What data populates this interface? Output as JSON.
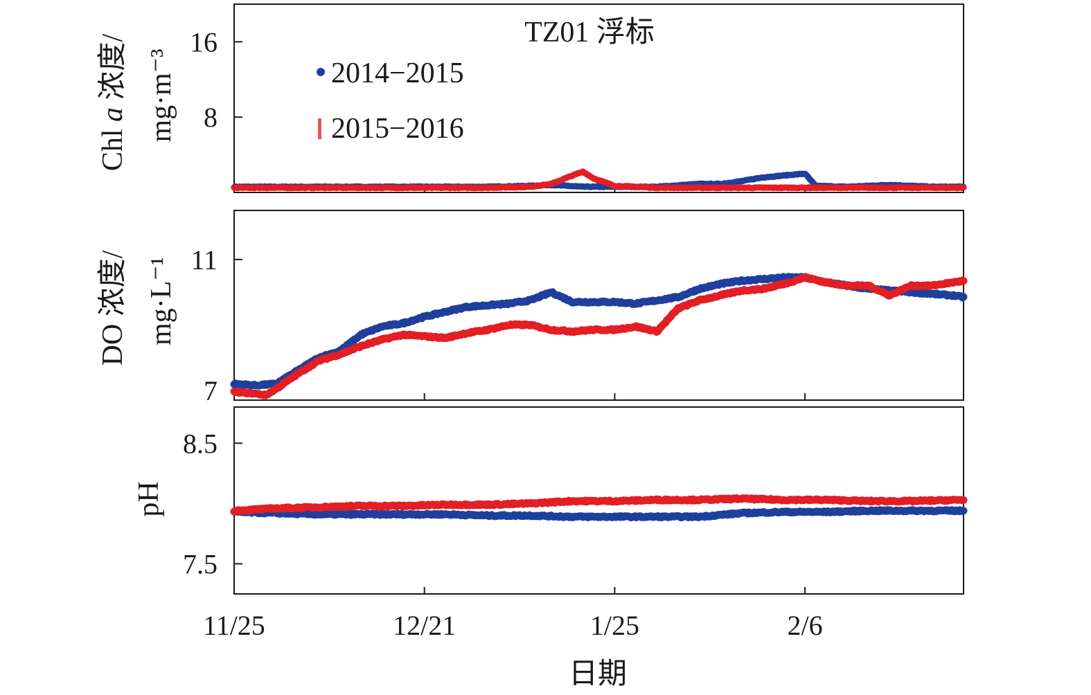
{
  "figure": {
    "title": "TZ01 浮标",
    "xlabel": "日期",
    "x_ticks": [
      "11/25",
      "12/21",
      "1/25",
      "2/6"
    ],
    "colors": {
      "2014-2015": "#1f3f9c",
      "2015-2016": "#e31e24"
    }
  },
  "chart_data": [
    {
      "type": "line",
      "panel": "chl",
      "title": "TZ01 浮标",
      "ylabel": "Chl a 浓度/",
      "ylabel_italic_part": "a",
      "yunit": "mg·m⁻³",
      "ylim": [
        0,
        20
      ],
      "yticks": [
        8,
        16
      ],
      "ytick_labels": [
        "8",
        "16"
      ],
      "xlabel": "日期",
      "x_ticks": [
        "11/25",
        "12/21",
        "1/25",
        "2/6"
      ],
      "legend": {
        "placement": "top-left"
      },
      "series": [
        {
          "name": "2014−2015",
          "color": "#1f3f9c",
          "marker": "dot",
          "x": [
            0,
            4,
            8,
            12,
            16,
            20,
            24,
            28,
            30,
            33,
            36,
            40,
            44,
            46,
            48,
            49,
            50,
            52,
            54,
            55,
            58,
            62,
            66,
            69
          ],
          "y": [
            0.6,
            0.6,
            0.6,
            0.6,
            0.6,
            0.6,
            0.6,
            0.7,
            0.8,
            0.6,
            0.6,
            0.6,
            0.9,
            0.9,
            1.2,
            1.4,
            1.6,
            1.8,
            2.0,
            0.7,
            0.6,
            0.8,
            0.6,
            0.6
          ]
        },
        {
          "name": "2015−2016",
          "color": "#e31e24",
          "marker": "vbar",
          "x": [
            0,
            4,
            8,
            12,
            16,
            20,
            24,
            28,
            30,
            32,
            33,
            34,
            36,
            38,
            40,
            44,
            48,
            52,
            56,
            60,
            64,
            69
          ],
          "y": [
            0.5,
            0.5,
            0.5,
            0.5,
            0.5,
            0.5,
            0.5,
            0.6,
            0.9,
            1.8,
            2.2,
            1.5,
            0.7,
            0.6,
            0.5,
            0.5,
            0.5,
            0.5,
            0.5,
            0.5,
            0.5,
            0.5
          ]
        }
      ]
    },
    {
      "type": "line",
      "panel": "do",
      "ylabel": "DO 浓度/",
      "yunit": "mg·L⁻¹",
      "ylim": [
        6.7,
        12.5
      ],
      "yticks": [
        7,
        11
      ],
      "ytick_labels": [
        "7",
        "11"
      ],
      "series": [
        {
          "name": "2014−2015",
          "color": "#1f3f9c",
          "x": [
            0,
            2,
            4,
            6,
            8,
            10,
            12,
            14,
            16,
            18,
            20,
            22,
            24,
            26,
            28,
            30,
            32,
            34,
            36,
            38,
            40,
            42,
            44,
            46,
            48,
            50,
            52,
            54,
            56,
            58,
            60,
            62,
            64,
            66,
            68,
            69
          ],
          "y": [
            7.2,
            7.15,
            7.2,
            7.6,
            8.0,
            8.2,
            8.7,
            8.95,
            9.05,
            9.25,
            9.4,
            9.55,
            9.6,
            9.65,
            9.75,
            10.0,
            9.7,
            9.7,
            9.7,
            9.65,
            9.75,
            9.85,
            10.1,
            10.25,
            10.35,
            10.4,
            10.45,
            10.45,
            10.3,
            10.2,
            10.1,
            10.05,
            10.0,
            9.95,
            9.9,
            9.85
          ]
        },
        {
          "name": "2015−2016",
          "color": "#e31e24",
          "x": [
            0,
            2,
            3,
            4,
            6,
            8,
            10,
            12,
            14,
            16,
            18,
            20,
            22,
            24,
            26,
            28,
            30,
            32,
            34,
            36,
            38,
            40,
            42,
            44,
            46,
            48,
            50,
            52,
            54,
            56,
            58,
            60,
            62,
            64,
            66,
            68,
            69
          ],
          "y": [
            6.95,
            6.9,
            6.85,
            7.05,
            7.5,
            7.9,
            8.1,
            8.35,
            8.55,
            8.7,
            8.65,
            8.6,
            8.75,
            8.85,
            9.0,
            9.0,
            8.85,
            8.8,
            8.85,
            8.85,
            8.95,
            8.8,
            9.5,
            9.75,
            9.9,
            10.05,
            10.1,
            10.25,
            10.45,
            10.3,
            10.2,
            10.2,
            9.9,
            10.2,
            10.2,
            10.3,
            10.35
          ]
        }
      ]
    },
    {
      "type": "line",
      "panel": "ph",
      "ylabel": "pH",
      "ylim": [
        7.25,
        8.8
      ],
      "yticks": [
        7.5,
        8.5
      ],
      "ytick_labels": [
        "7.5",
        "8.5"
      ],
      "series": [
        {
          "name": "2014−2015",
          "color": "#1f3f9c",
          "x": [
            0,
            4,
            8,
            12,
            16,
            20,
            24,
            28,
            32,
            36,
            40,
            44,
            48,
            52,
            56,
            60,
            64,
            69
          ],
          "y": [
            7.93,
            7.92,
            7.91,
            7.91,
            7.91,
            7.91,
            7.9,
            7.9,
            7.89,
            7.89,
            7.89,
            7.89,
            7.92,
            7.93,
            7.93,
            7.94,
            7.94,
            7.94
          ]
        },
        {
          "name": "2015−2016",
          "color": "#e31e24",
          "x": [
            0,
            4,
            8,
            12,
            16,
            20,
            24,
            28,
            32,
            34,
            36,
            40,
            44,
            48,
            52,
            56,
            60,
            64,
            69
          ],
          "y": [
            7.94,
            7.96,
            7.97,
            7.98,
            7.98,
            7.99,
            7.99,
            8.0,
            8.02,
            8.02,
            8.02,
            8.03,
            8.03,
            8.04,
            8.03,
            8.03,
            8.02,
            8.02,
            8.03
          ]
        }
      ]
    }
  ]
}
